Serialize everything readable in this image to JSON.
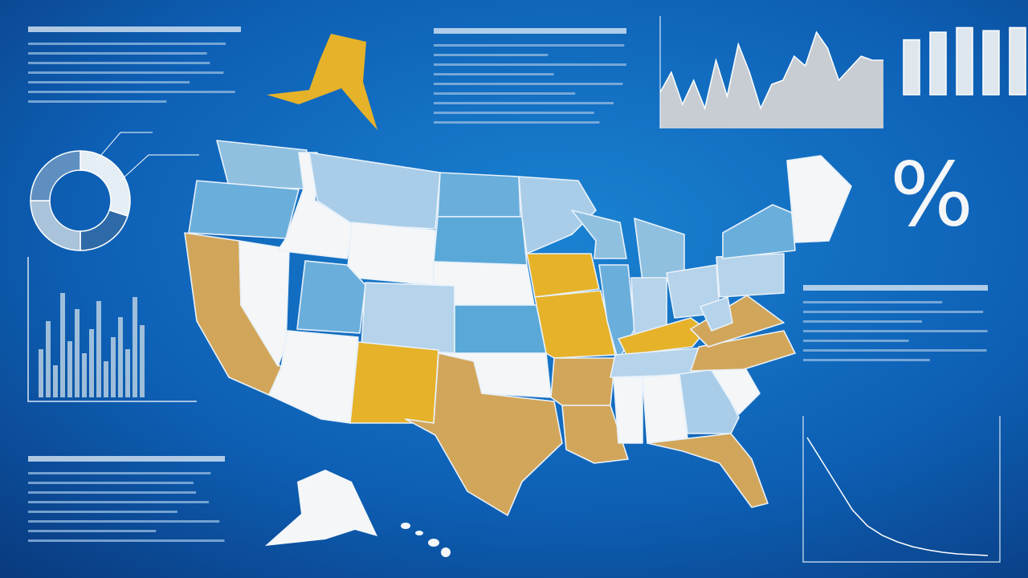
{
  "percent_symbol": "%",
  "top_bar_chart": {
    "values": [
      72,
      82,
      88,
      84,
      88
    ],
    "ylim": [
      0,
      100
    ]
  },
  "line_chart": {
    "values": [
      45,
      70,
      30,
      60,
      25,
      85,
      40,
      105,
      70,
      25,
      55,
      60,
      90,
      78,
      120,
      100,
      60,
      75,
      90,
      85,
      85
    ],
    "ylim": [
      0,
      140
    ]
  },
  "histogram": {
    "values": [
      60,
      95,
      40,
      130,
      70,
      110,
      55,
      85,
      120,
      45,
      75,
      100,
      60,
      125,
      90
    ],
    "ylim": [
      0,
      150
    ]
  },
  "decay_chart": {
    "values": [
      150,
      120,
      90,
      60,
      40,
      28,
      20,
      14,
      10,
      7,
      5,
      4,
      3
    ],
    "ylim": [
      0,
      170
    ]
  },
  "donut": {
    "values": [
      30,
      20,
      25,
      25
    ]
  }
}
